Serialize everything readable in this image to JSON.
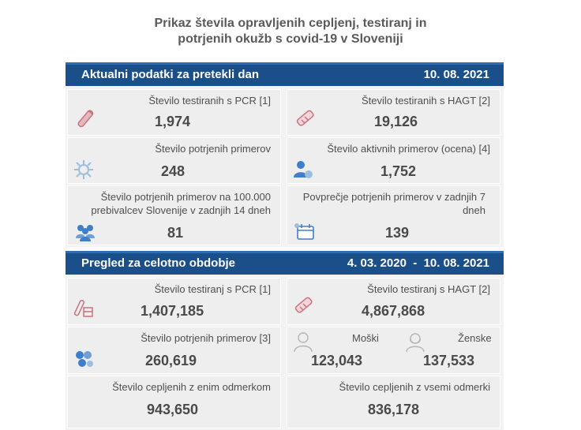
{
  "header": {
    "title_line1": "Prikaz števila opravljenih cepljenj, testiranj in",
    "title_line2": "potrjenih okužb s covid-19 v Sloveniji"
  },
  "daily": {
    "bar_title": "Aktualni podatki za pretekli dan",
    "date": "10. 08. 2021",
    "cards": [
      {
        "label": "Število testiranih s PCR [1]",
        "value": "1,974",
        "icon": "test-tube-icon"
      },
      {
        "label": "Število testiranih s HAGT [2]",
        "value": "19,126",
        "icon": "rapid-test-icon"
      },
      {
        "label": "Število potrjenih primerov",
        "value": "248",
        "icon": "virus-icon"
      },
      {
        "label": "Število aktivnih primerov (ocena) [4]",
        "value": "1,752",
        "icon": "patient-icon"
      },
      {
        "label_line1": "Število potrjenih primerov na 100.000",
        "label_line2": "prebivalcev Slovenije v zadnjih 14 dneh",
        "value": "81",
        "icon": "population-icon"
      },
      {
        "label_line1": "Povprečje potrjenih primerov v zadnjih 7",
        "label_line2": "dneh",
        "value": "139",
        "icon": "calendar-icon"
      }
    ]
  },
  "total": {
    "bar_title": "Pregled za celotno obdobje",
    "date_range": "4. 03. 2020  -  10. 08. 2021",
    "cards": [
      {
        "label": "Število testiranj s PCR [1]",
        "value": "1,407,185",
        "icon": "test-tubes-icon"
      },
      {
        "label": "Število testiranj s HAGT [2]",
        "value": "4,867,868",
        "icon": "rapid-test-icon"
      },
      {
        "label": "Število potrjenih primerov [3]",
        "value": "260,619",
        "icon": "virus-group-icon"
      },
      {
        "label": "Število cepljenih z enim odmerkom",
        "value": "943,650"
      },
      {
        "label": "Število cepljenih z vsemi odmerki",
        "value": "836,178"
      }
    ],
    "gender": {
      "male_label": "Moški",
      "male_value": "123,043",
      "female_label": "Ženske",
      "female_value": "137,533"
    }
  },
  "colors": {
    "bar": "#1a4f8a",
    "panel": "#f3f3f3",
    "icon_red": "#c8737f",
    "icon_blue": "#3f7fc9",
    "icon_light": "#9bbfe0"
  }
}
